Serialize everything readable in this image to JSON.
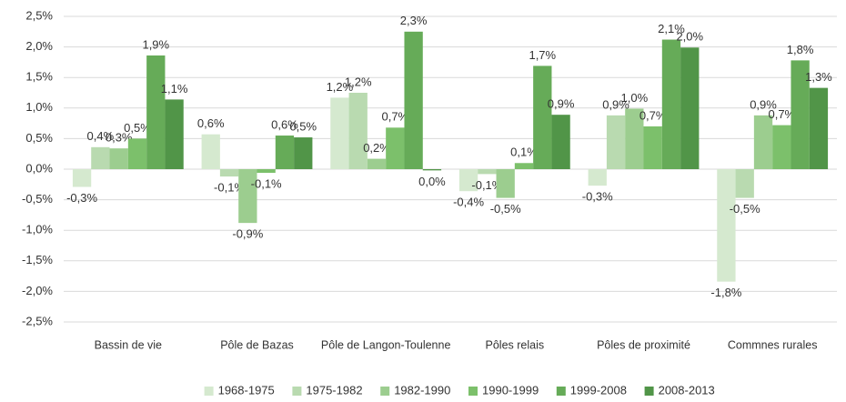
{
  "chart_data": {
    "type": "bar",
    "categories": [
      "Bassin de vie",
      "Pôle de Bazas",
      "Pôle de Langon-Toulenne",
      "Pôles relais",
      "Pôles de proximité",
      "Commnes rurales"
    ],
    "series": [
      {
        "name": "1968-1975",
        "color": "#d5e9cf",
        "values": [
          -0.29,
          0.57,
          1.17,
          -0.36,
          -0.27,
          -1.84
        ],
        "value_labels": [
          "-0,3%",
          "0,6%",
          "1,2%",
          "-0,4%",
          "-0,3%",
          "-1,8%"
        ]
      },
      {
        "name": "1975-1982",
        "color": "#b9dab0",
        "values": [
          0.36,
          -0.12,
          1.25,
          -0.08,
          0.88,
          -0.47
        ],
        "value_labels": [
          "0,4%",
          "-0,1%",
          "1,2%",
          "-0,1%",
          "0,9%",
          "-0,5%"
        ]
      },
      {
        "name": "1982-1990",
        "color": "#9ccd8f",
        "values": [
          0.34,
          -0.88,
          0.17,
          -0.47,
          0.99,
          0.88
        ],
        "value_labels": [
          "0,3%",
          "-0,9%",
          "0,2%",
          "-0,5%",
          "1,0%",
          "0,9%"
        ]
      },
      {
        "name": "1990-1999",
        "color": "#7cc06b",
        "values": [
          0.5,
          -0.06,
          0.68,
          0.1,
          0.7,
          0.72
        ],
        "value_labels": [
          "0,5%",
          "-0,1%",
          "0,7%",
          "0,1%",
          "0,7%",
          "0,7%"
        ]
      },
      {
        "name": "1999-2008",
        "color": "#66ab58",
        "values": [
          1.86,
          0.55,
          2.25,
          1.69,
          2.12,
          1.78
        ],
        "value_labels": [
          "1,9%",
          "0,6%",
          "2,3%",
          "1,7%",
          "2,1%",
          "1,8%"
        ]
      },
      {
        "name": "2008-2013",
        "color": "#519548",
        "values": [
          1.14,
          0.52,
          -0.02,
          0.89,
          1.99,
          1.33
        ],
        "value_labels": [
          "1,1%",
          "0,5%",
          "0,0%",
          "0,9%",
          "2,0%",
          "1,3%"
        ]
      }
    ],
    "ylim": [
      -2.5,
      2.5
    ],
    "yticks": [
      {
        "value": -2.5,
        "label": "-2,5%"
      },
      {
        "value": -2,
        "label": "-2,0%"
      },
      {
        "value": -1.5,
        "label": "-1,5%"
      },
      {
        "value": -1,
        "label": "-1,0%"
      },
      {
        "value": -0.5,
        "label": "-0,5%"
      },
      {
        "value": 0,
        "label": "0,0%"
      },
      {
        "value": 0.5,
        "label": "0,5%"
      },
      {
        "value": 1,
        "label": "1,0%"
      },
      {
        "value": 1.5,
        "label": "1,5%"
      },
      {
        "value": 2,
        "label": "2,0%"
      },
      {
        "value": 2.5,
        "label": "2,5%"
      }
    ],
    "grid": true,
    "legend": "bottom"
  }
}
